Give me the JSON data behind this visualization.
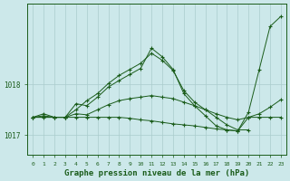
{
  "background_color": "#cce8ea",
  "grid_color": "#aacccc",
  "line_color": "#1a5c1a",
  "xlabel": "Graphe pression niveau de la mer (hPa)",
  "ylim": [
    1016.6,
    1019.6
  ],
  "xlim": [
    -0.5,
    23.5
  ],
  "yticks": [
    1017,
    1018
  ],
  "xticks": [
    0,
    1,
    2,
    3,
    4,
    5,
    6,
    7,
    8,
    9,
    10,
    11,
    12,
    13,
    14,
    15,
    16,
    17,
    18,
    19,
    20,
    21,
    22,
    23
  ],
  "series1_x": [
    0,
    1,
    2,
    3,
    4,
    5,
    6,
    7,
    8,
    9,
    10,
    11,
    12,
    13,
    14,
    15,
    16,
    17,
    18,
    19,
    20,
    21,
    22,
    23
  ],
  "series1_y": [
    1017.35,
    1017.35,
    1017.35,
    1017.35,
    1017.35,
    1017.35,
    1017.35,
    1017.35,
    1017.35,
    1017.33,
    1017.3,
    1017.28,
    1017.25,
    1017.22,
    1017.2,
    1017.18,
    1017.15,
    1017.12,
    1017.1,
    1017.08,
    1017.35,
    1017.35,
    1017.35,
    1017.35
  ],
  "series2_x": [
    0,
    1,
    2,
    3,
    4,
    5,
    6,
    7,
    8,
    9,
    10,
    11,
    12,
    13,
    14,
    15,
    16,
    17,
    18,
    19,
    20,
    21,
    22,
    23
  ],
  "series2_y": [
    1017.35,
    1017.38,
    1017.35,
    1017.35,
    1017.42,
    1017.4,
    1017.5,
    1017.6,
    1017.68,
    1017.72,
    1017.75,
    1017.78,
    1017.75,
    1017.72,
    1017.65,
    1017.58,
    1017.5,
    1017.42,
    1017.35,
    1017.3,
    1017.35,
    1017.42,
    1017.55,
    1017.7
  ],
  "series3_x": [
    0,
    3,
    4,
    5,
    6,
    7,
    8,
    9,
    10,
    11,
    12,
    13,
    14,
    15,
    16,
    17,
    18,
    19,
    20
  ],
  "series3_y": [
    1017.35,
    1017.35,
    1017.5,
    1017.68,
    1017.82,
    1018.02,
    1018.18,
    1018.3,
    1018.42,
    1018.62,
    1018.48,
    1018.28,
    1017.88,
    1017.65,
    1017.5,
    1017.35,
    1017.2,
    1017.1,
    1017.1
  ],
  "series4_x": [
    0,
    1,
    2,
    3,
    4,
    5,
    6,
    7,
    8,
    9,
    10,
    11,
    12,
    13,
    14,
    15,
    16,
    17,
    18,
    19,
    20,
    21,
    22,
    23
  ],
  "series4_y": [
    1017.35,
    1017.42,
    1017.35,
    1017.35,
    1017.62,
    1017.58,
    1017.75,
    1017.95,
    1018.08,
    1018.2,
    1018.32,
    1018.72,
    1018.55,
    1018.3,
    1017.82,
    1017.58,
    1017.38,
    1017.18,
    1017.1,
    1017.08,
    1017.45,
    1018.3,
    1019.15,
    1019.35
  ]
}
